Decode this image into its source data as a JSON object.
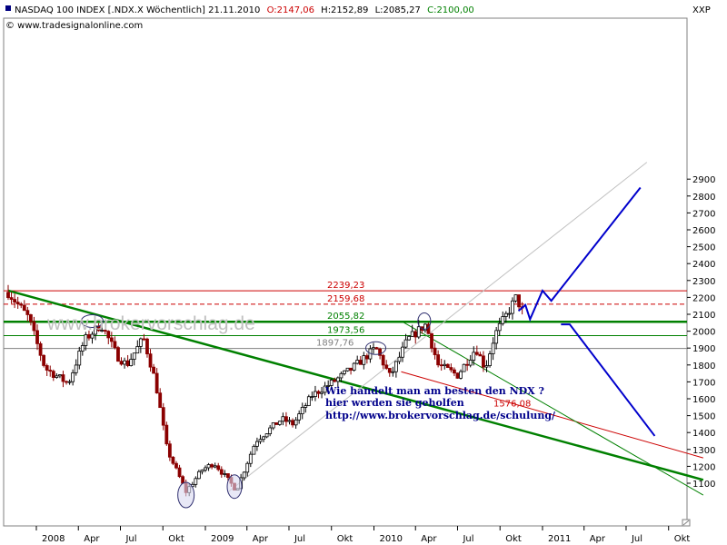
{
  "header": {
    "symbol_label": "NASDAQ 100 INDEX [.NDX.X  Wöchentlich] 21.11.2010",
    "open": "O:2147,06",
    "high": "H:2152,89",
    "low": "L:2085,27",
    "close": "C:2100,00",
    "source": "© www.tradesignalonline.com",
    "price_unit": "XXP"
  },
  "watermark": "www.brokervorschlag.de",
  "promo": {
    "line1": "Wie handelt man am besten den NDX ?",
    "line2": "hier werden sie geholfen",
    "line3": "http://www.brokervorschlag.de/schulung/"
  },
  "colors": {
    "up_candle": "#000000",
    "down_candle": "#8b0000",
    "support_green": "#008000",
    "resistance_red": "#cc0000",
    "neutral_gray": "#808080",
    "projection_blue": "#0000cc"
  },
  "chart_data": {
    "type": "candlestick",
    "title": "NASDAQ 100 INDEX [.NDX.X Wöchentlich] 21.11.2010",
    "x_axis_ticks": [
      "2008",
      "Apr",
      "Jul",
      "Okt",
      "2009",
      "Apr",
      "Jul",
      "Okt",
      "2010",
      "Apr",
      "Jul",
      "Okt",
      "2011",
      "Apr",
      "Jul",
      "Okt"
    ],
    "y_axis_ticks": [
      1100,
      1200,
      1300,
      1400,
      1500,
      1600,
      1700,
      1800,
      1900,
      2000,
      2100,
      2200,
      2300,
      2400,
      2500,
      2600,
      2700,
      2800,
      2900
    ],
    "ylim": [
      1000,
      2970
    ],
    "grid": false,
    "last_ohlc": {
      "open": 2147.06,
      "high": 2152.89,
      "low": 2085.27,
      "close": 2100.0
    },
    "horizontal_levels": [
      {
        "label": "2239,23",
        "value": 2239.23,
        "color": "#cc0000",
        "style": "solid"
      },
      {
        "label": "2159,68",
        "value": 2159.68,
        "color": "#cc0000",
        "style": "dashed"
      },
      {
        "label": "2055,82",
        "value": 2055.82,
        "color": "#008000",
        "style": "solid-thick"
      },
      {
        "label": "1973,56",
        "value": 1973.56,
        "color": "#008000",
        "style": "solid"
      },
      {
        "label": "1897,76",
        "value": 1897.76,
        "color": "#808080",
        "style": "solid"
      }
    ],
    "level_annotations": [
      {
        "label": "1576,08",
        "value": 1576.08,
        "color": "#cc0000"
      }
    ],
    "price_path": [
      [
        "2007-11-01",
        2230
      ],
      [
        "2007-12-15",
        2080
      ],
      [
        "2008-01-20",
        1780
      ],
      [
        "2008-03-10",
        1690
      ],
      [
        "2008-04-15",
        1950
      ],
      [
        "2008-05-20",
        2040
      ],
      [
        "2008-06-25",
        1850
      ],
      [
        "2008-07-15",
        1800
      ],
      [
        "2008-08-20",
        1960
      ],
      [
        "2008-09-15",
        1700
      ],
      [
        "2008-10-10",
        1300
      ],
      [
        "2008-11-20",
        1050
      ],
      [
        "2008-12-25",
        1180
      ],
      [
        "2009-01-20",
        1220
      ],
      [
        "2009-03-09",
        1060
      ],
      [
        "2009-04-20",
        1350
      ],
      [
        "2009-06-15",
        1480
      ],
      [
        "2009-07-10",
        1450
      ],
      [
        "2009-08-20",
        1620
      ],
      [
        "2009-10-05",
        1700
      ],
      [
        "2009-11-15",
        1780
      ],
      [
        "2010-01-05",
        1900
      ],
      [
        "2010-02-05",
        1730
      ],
      [
        "2010-03-15",
        1950
      ],
      [
        "2010-04-23",
        2040
      ],
      [
        "2010-05-20",
        1800
      ],
      [
        "2010-07-01",
        1740
      ],
      [
        "2010-08-10",
        1900
      ],
      [
        "2010-08-30",
        1780
      ],
      [
        "2010-09-20",
        1980
      ],
      [
        "2010-10-20",
        2120
      ],
      [
        "2010-11-05",
        2200
      ],
      [
        "2010-11-21",
        2100
      ]
    ],
    "trend_lines": [
      {
        "name": "long-downtrend",
        "color": "#008000",
        "points": [
          [
            "2007-11-01",
            2240
          ],
          [
            "2011-12-15",
            1120
          ]
        ]
      },
      {
        "name": "long-uptrend",
        "color": "#c0c0c0",
        "points": [
          [
            "2009-02-20",
            1050
          ],
          [
            "2011-08-15",
            3000
          ]
        ]
      },
      {
        "name": "channel-lower",
        "color": "#cc0000",
        "points": [
          [
            "2010-03-01",
            1760
          ],
          [
            "2011-12-15",
            1250
          ]
        ]
      },
      {
        "name": "steep-downtrend",
        "color": "#008000",
        "points": [
          [
            "2010-03-01",
            2060
          ],
          [
            "2011-12-15",
            1030
          ]
        ]
      }
    ],
    "projections": [
      {
        "name": "bullish-scenario",
        "color": "#0000cc",
        "points": [
          [
            "2010-11-10",
            2120
          ],
          [
            "2010-11-25",
            2155
          ],
          [
            "2010-12-05",
            2070
          ],
          [
            "2011-01-01",
            2240
          ],
          [
            "2011-01-20",
            2180
          ],
          [
            "2011-08-01",
            2850
          ]
        ]
      },
      {
        "name": "bearish-scenario",
        "color": "#0000cc",
        "points": [
          [
            "2011-02-10",
            2040
          ],
          [
            "2011-03-01",
            2040
          ],
          [
            "2011-09-01",
            1380
          ]
        ]
      }
    ],
    "pattern_markers": [
      {
        "type": "ellipse",
        "date": "2008-05-01",
        "value": 2060
      },
      {
        "type": "ellipse",
        "date": "2010-01-05",
        "value": 1900
      },
      {
        "type": "ellipse",
        "date": "2010-04-20",
        "value": 2060
      },
      {
        "type": "ellipse",
        "date": "2008-11-20",
        "value": 1030
      },
      {
        "type": "ellipse",
        "date": "2009-03-05",
        "value": 1080
      }
    ]
  }
}
